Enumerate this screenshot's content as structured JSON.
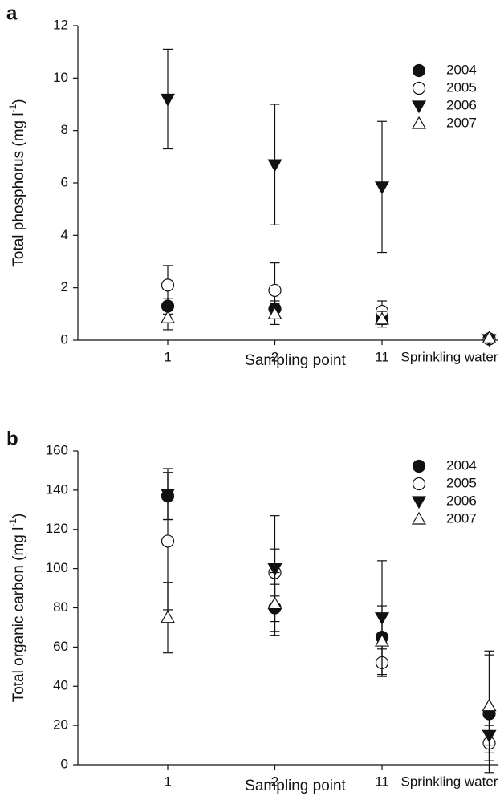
{
  "chart_data": [
    {
      "type": "scatter",
      "panel": "a",
      "ylabel": "Total phosphorus (mg l",
      "ylabel_sup": "-1",
      "ylabel_end": ")",
      "xlabel": "Sampling point",
      "categories": [
        "1",
        "2",
        "11",
        "Sprinkling water"
      ],
      "ylim": [
        0,
        12
      ],
      "yticks": [
        0,
        2,
        4,
        6,
        8,
        10,
        12
      ],
      "series": [
        {
          "name": "2004",
          "color": "#111111",
          "marker": "circle",
          "filled": true,
          "values": [
            1.3,
            1.2,
            0.85,
            0.05
          ],
          "errors": [
            0.3,
            0.3,
            0.25,
            0.02
          ]
        },
        {
          "name": "2005",
          "color": "#111111",
          "marker": "circle",
          "filled": false,
          "values": [
            2.1,
            1.9,
            1.1,
            0.05
          ],
          "errors": [
            0.75,
            1.05,
            0.4,
            0.02
          ]
        },
        {
          "name": "2006",
          "color": "#111111",
          "marker": "triangle-down",
          "filled": true,
          "values": [
            9.2,
            6.7,
            5.85,
            0.03
          ],
          "errors": [
            1.9,
            2.3,
            2.5,
            0.01
          ]
        },
        {
          "name": "2007",
          "color": "#111111",
          "marker": "triangle-up",
          "filled": false,
          "values": [
            0.85,
            1.0,
            0.8,
            0.08
          ],
          "errors": [
            0.45,
            0.4,
            0.3,
            0.02
          ]
        }
      ]
    },
    {
      "type": "scatter",
      "panel": "b",
      "ylabel": "Total organic carbon (mg l",
      "ylabel_sup": "-1",
      "ylabel_end": ")",
      "xlabel": "Sampling point",
      "categories": [
        "1",
        "2",
        "11",
        "Sprinkling water"
      ],
      "ylim": [
        0,
        160
      ],
      "yticks": [
        0,
        20,
        40,
        60,
        80,
        100,
        120,
        140,
        160
      ],
      "series": [
        {
          "name": "2004",
          "color": "#111111",
          "marker": "circle",
          "filled": true,
          "values": [
            137,
            80,
            65,
            26
          ],
          "errors": [
            12,
            12,
            12,
            30
          ]
        },
        {
          "name": "2005",
          "color": "#111111",
          "marker": "circle",
          "filled": false,
          "values": [
            114,
            98,
            52,
            11
          ],
          "errors": [
            35,
            12,
            7,
            5
          ]
        },
        {
          "name": "2006",
          "color": "#111111",
          "marker": "triangle-down",
          "filled": true,
          "values": [
            138,
            100,
            75,
            15
          ],
          "errors": [
            13,
            27,
            29,
            5
          ]
        },
        {
          "name": "2007",
          "color": "#111111",
          "marker": "triangle-up",
          "filled": false,
          "values": [
            75,
            82,
            63,
            30
          ],
          "errors": [
            18,
            16,
            18,
            28
          ]
        }
      ]
    }
  ]
}
